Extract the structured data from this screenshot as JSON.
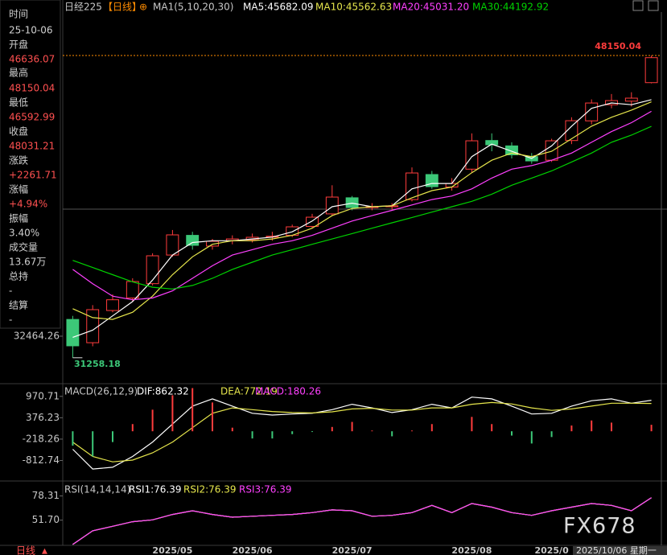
{
  "header": {
    "title": "日经225",
    "period": "【日线】",
    "ma_group": "MA1(5,10,20,30)"
  },
  "side_panel": [
    {
      "label": "时间",
      "value": "25-10-06"
    },
    {
      "label": "开盘",
      "value": "46636.07"
    },
    {
      "label": "最高",
      "value": "48150.04"
    },
    {
      "label": "最低",
      "value": "46592.99"
    },
    {
      "label": "收盘",
      "value": "48031.21"
    },
    {
      "label": "涨跌",
      "value": "+2261.71"
    },
    {
      "label": "涨幅",
      "value": "+4.94%"
    },
    {
      "label": "振幅",
      "value": "3.40%"
    },
    {
      "label": "成交量",
      "value": "13.67万"
    },
    {
      "label": "总持",
      "value": "-"
    },
    {
      "label": "结算",
      "value": "-"
    }
  ],
  "chart_data": [
    {
      "type": "candlestick",
      "categories": [
        null,
        null,
        null,
        null,
        null,
        "2025/05",
        null,
        null,
        null,
        "2025/06",
        null,
        null,
        null,
        null,
        "2025/07",
        null,
        null,
        null,
        null,
        null,
        "2025/08",
        null,
        null,
        null,
        "2025/0",
        null,
        null,
        null,
        null,
        null
      ],
      "open": [
        33400,
        32100,
        33900,
        34600,
        35400,
        37000,
        38100,
        37500,
        37800,
        37850,
        38000,
        38100,
        38600,
        39300,
        40200,
        39650,
        39700,
        40100,
        41500,
        40800,
        41800,
        43400,
        43100,
        42500,
        42300,
        43400,
        44500,
        45400,
        45600,
        46636.07
      ],
      "high": [
        33600,
        34200,
        34800,
        35700,
        37100,
        38400,
        38300,
        37900,
        38100,
        38200,
        38300,
        38700,
        39300,
        40900,
        40300,
        39900,
        39900,
        41900,
        41700,
        41300,
        43800,
        43800,
        43300,
        42700,
        43500,
        44700,
        45700,
        46000,
        46100,
        48150.04
      ],
      "low": [
        31258.18,
        31900,
        33800,
        34400,
        35300,
        36900,
        37300,
        37300,
        37600,
        37700,
        37800,
        38000,
        38500,
        39200,
        39500,
        39500,
        39500,
        40000,
        40700,
        40600,
        41600,
        42800,
        42400,
        42100,
        42200,
        43200,
        44300,
        45200,
        45300,
        46592.99
      ],
      "close": [
        31925,
        33947,
        34500,
        35520,
        36958,
        38127,
        37542,
        37767,
        37900,
        37992,
        38050,
        38576,
        39115,
        40239,
        39655,
        39700,
        39750,
        41587,
        40823,
        41000,
        43385,
        43160,
        42600,
        42261,
        43385,
        44508,
        45497,
        45632,
        45769,
        48031.21
      ],
      "up_color": "#ff3c3c",
      "down_color": "#3cc878",
      "ylim": [
        29900,
        50580
      ],
      "yticks": [
        32464.26
      ],
      "max_marker": 48150.04,
      "min_marker": 31258.18,
      "series": [
        {
          "name": "MA5:45682.09",
          "color": "#ffffff",
          "values": [
            32400,
            32800,
            33600,
            34400,
            35600,
            37000,
            37700,
            37800,
            37800,
            37900,
            38000,
            38300,
            38900,
            39700,
            39900,
            39700,
            39750,
            40700,
            41000,
            41000,
            42500,
            43200,
            42800,
            42400,
            43100,
            44200,
            45200,
            45500,
            45400,
            45682.09
          ]
        },
        {
          "name": "MA10:45562.63",
          "color": "#e6e64c",
          "values": [
            34000,
            33500,
            33400,
            33800,
            34700,
            35900,
            36900,
            37600,
            37800,
            37800,
            37900,
            38100,
            38500,
            39200,
            39600,
            39700,
            39750,
            40200,
            40600,
            40800,
            41600,
            42300,
            42700,
            42500,
            42800,
            43500,
            44200,
            44700,
            45100,
            45562.63
          ]
        },
        {
          "name": "MA20:45031.20",
          "color": "#ff40ff",
          "values": [
            36200,
            35400,
            34700,
            34500,
            34600,
            35000,
            35700,
            36400,
            37000,
            37300,
            37600,
            37800,
            38100,
            38500,
            38900,
            39200,
            39500,
            39800,
            40100,
            40300,
            40700,
            41300,
            41800,
            42000,
            42300,
            42700,
            43300,
            43900,
            44400,
            45031.2
          ]
        },
        {
          "name": "MA30:44192.92",
          "color": "#00d200",
          "values": [
            36700,
            36300,
            35900,
            35500,
            35200,
            35100,
            35300,
            35700,
            36200,
            36600,
            37000,
            37300,
            37600,
            37900,
            38200,
            38500,
            38800,
            39100,
            39400,
            39700,
            40000,
            40400,
            40900,
            41300,
            41700,
            42200,
            42700,
            43300,
            43700,
            44192.92
          ]
        }
      ]
    },
    {
      "type": "macd",
      "title": "MACD(26,12,9)",
      "ylim": [
        -1360,
        1256
      ],
      "yticks": [
        970.71,
        376.23,
        -218.26,
        -812.74
      ],
      "series": [
        {
          "name": "DIF:862.32",
          "color": "#ffffff",
          "values": [
            -500,
            -1050,
            -1000,
            -700,
            -300,
            200,
            700,
            900,
            700,
            500,
            450,
            480,
            500,
            600,
            750,
            650,
            520,
            600,
            750,
            650,
            950,
            900,
            700,
            480,
            500,
            700,
            850,
            900,
            780,
            862.32
          ]
        },
        {
          "name": "DEA:772.19",
          "color": "#e6e64c",
          "values": [
            -300,
            -700,
            -850,
            -800,
            -600,
            -300,
            100,
            500,
            650,
            600,
            550,
            520,
            510,
            540,
            620,
            640,
            590,
            590,
            650,
            650,
            750,
            800,
            760,
            650,
            580,
            620,
            700,
            780,
            780,
            772.19
          ]
        },
        {
          "name": "MACD:180.26",
          "color": "#ff40ff",
          "style": "histogram",
          "values": [
            -400,
            -700,
            -300,
            200,
            600,
            1000,
            1200,
            800,
            100,
            -200,
            -200,
            -80,
            -20,
            120,
            260,
            20,
            -140,
            20,
            200,
            0,
            400,
            200,
            -120,
            -340,
            -160,
            160,
            300,
            240,
            0,
            180.26
          ]
        }
      ]
    },
    {
      "type": "rsi",
      "title": "RSI(14,14,14)",
      "ylim": [
        24,
        93
      ],
      "yticks": [
        78.31,
        {
          "value": 51.7,
          "label": "51.70"
        }
      ],
      "series": [
        {
          "name": "RSI1:76.39",
          "color": "#ffffff",
          "values": [
            25,
            40,
            45,
            50,
            52,
            58,
            62,
            58,
            55,
            56,
            57,
            58,
            60,
            63,
            62,
            56,
            57,
            60,
            68,
            60,
            70,
            66,
            60,
            57,
            62,
            66,
            70,
            68,
            62,
            76.39
          ]
        },
        {
          "name": "RSI2:76.39",
          "color": "#e6e64c",
          "values": [
            25,
            40,
            45,
            50,
            52,
            58,
            62,
            58,
            55,
            56,
            57,
            58,
            60,
            63,
            62,
            56,
            57,
            60,
            68,
            60,
            70,
            66,
            60,
            57,
            62,
            66,
            70,
            68,
            62,
            76.39
          ]
        },
        {
          "name": "RSI3:76.39",
          "color": "#ff40ff",
          "values": [
            25,
            40,
            45,
            50,
            52,
            58,
            62,
            58,
            55,
            56,
            57,
            58,
            60,
            63,
            62,
            56,
            57,
            60,
            68,
            60,
            70,
            66,
            60,
            57,
            62,
            66,
            70,
            68,
            62,
            76.39
          ]
        }
      ]
    }
  ],
  "cursor_date": "2025/10/06 星期一",
  "tab": "日线",
  "watermark": "FX678"
}
